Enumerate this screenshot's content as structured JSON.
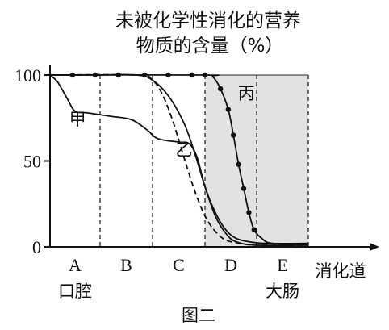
{
  "chart_data": {
    "type": "line",
    "title_line1": "未被化学性消化的营养",
    "title_line2": "物质的含量（%）",
    "ylim": [
      0,
      100
    ],
    "yticks": [
      "0",
      "50",
      "100"
    ],
    "regions": [
      {
        "letter": "A",
        "organ": "口腔"
      },
      {
        "letter": "B",
        "organ": ""
      },
      {
        "letter": "C",
        "organ": ""
      },
      {
        "letter": "D",
        "organ": ""
      },
      {
        "letter": "E",
        "organ": "大肠"
      }
    ],
    "xlabel": "消化道",
    "shaded_region": "D-E",
    "series": [
      {
        "name": "甲",
        "style": "solid",
        "points": [
          [
            0,
            100
          ],
          [
            0.15,
            96
          ],
          [
            0.35,
            86
          ],
          [
            0.5,
            79
          ],
          [
            0.75,
            78
          ],
          [
            1.2,
            76
          ],
          [
            1.6,
            74
          ],
          [
            1.9,
            68
          ],
          [
            2.1,
            63
          ],
          [
            2.5,
            61
          ],
          [
            2.7,
            60
          ],
          [
            2.85,
            52
          ],
          [
            3.0,
            35
          ],
          [
            3.2,
            20
          ],
          [
            3.4,
            10
          ],
          [
            3.6,
            5
          ],
          [
            3.85,
            3
          ],
          [
            4.2,
            2
          ],
          [
            5,
            2
          ]
        ]
      },
      {
        "name": "乙",
        "style": "solid",
        "points": [
          [
            0,
            100
          ],
          [
            0.9,
            100
          ],
          [
            1.7,
            100
          ],
          [
            2.0,
            97
          ],
          [
            2.3,
            88
          ],
          [
            2.6,
            72
          ],
          [
            2.8,
            55
          ],
          [
            3.0,
            35
          ],
          [
            3.2,
            18
          ],
          [
            3.4,
            8
          ],
          [
            3.6,
            3
          ],
          [
            4.0,
            1
          ],
          [
            5,
            1
          ]
        ]
      },
      {
        "name": "",
        "style": "dashed",
        "points": [
          [
            0,
            100
          ],
          [
            1.7,
            100
          ],
          [
            2.0,
            97
          ],
          [
            2.2,
            88
          ],
          [
            2.4,
            72
          ],
          [
            2.6,
            52
          ],
          [
            2.8,
            33
          ],
          [
            3.0,
            18
          ],
          [
            3.2,
            9
          ],
          [
            3.4,
            4
          ],
          [
            3.7,
            2
          ],
          [
            4.0,
            1
          ],
          [
            5,
            1
          ]
        ]
      },
      {
        "name": "丙",
        "style": "dotted-markers",
        "points": [
          [
            0,
            100
          ],
          [
            3.0,
            100
          ],
          [
            3.15,
            99
          ],
          [
            3.3,
            92
          ],
          [
            3.45,
            80
          ],
          [
            3.55,
            65
          ],
          [
            3.65,
            48
          ],
          [
            3.75,
            34
          ],
          [
            3.85,
            20
          ],
          [
            3.95,
            10
          ],
          [
            4.1,
            5
          ],
          [
            4.3,
            2
          ],
          [
            5,
            1
          ]
        ],
        "marker_x": [
          0.45,
          0.9,
          1.35,
          1.85,
          2.3,
          2.75,
          3.0,
          3.3,
          3.45,
          3.55,
          3.65,
          3.75,
          3.85,
          3.95
        ]
      }
    ]
  },
  "caption": "图二"
}
